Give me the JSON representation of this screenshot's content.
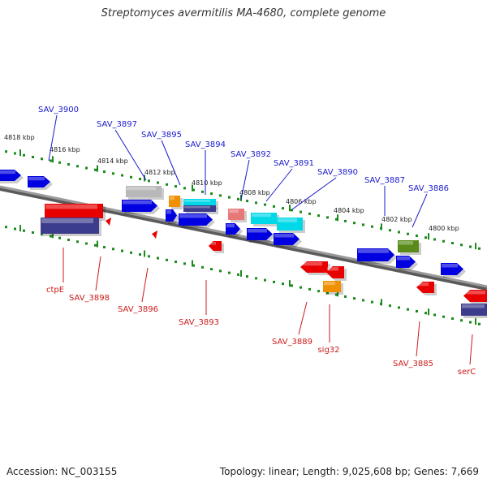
{
  "title": "Streptomyces avermitilis MA-4680, complete genome",
  "footer": {
    "accession": "Accession: NC_003155",
    "stats": "Topology: linear; Length: 9,025,608 bp; Genes: 7,669"
  },
  "colors": {
    "blue": "#0000e0",
    "red": "#e80000",
    "navy": "#3c3c8c",
    "orange": "#f09000",
    "cyan": "#00d8e8",
    "gray": "#b8b8b8",
    "pink": "#e87878",
    "olive": "#5a8a1a",
    "tick": "#1a8a1a",
    "label_blue": "#1a1acc",
    "label_red": "#cc1a1a",
    "backbone": "#8a8a8a"
  },
  "kbp_ticks": [
    "4818 kbp",
    "4816 kbp",
    "4814 kbp",
    "4812 kbp",
    "4810 kbp",
    "4808 kbp",
    "4806 kbp",
    "4804 kbp",
    "4802 kbp",
    "4800 kbp"
  ],
  "genes_top": [
    "SAV_3900",
    "SAV_3897",
    "SAV_3895",
    "SAV_3894",
    "SAV_3892",
    "SAV_3891",
    "SAV_3890",
    "SAV_3887",
    "SAV_3886"
  ],
  "genes_bottom": [
    "ctpE",
    "SAV_3898",
    "SAV_3896",
    "SAV_3893",
    "SAV_3889",
    "sig32",
    "SAV_3885",
    "serC"
  ]
}
